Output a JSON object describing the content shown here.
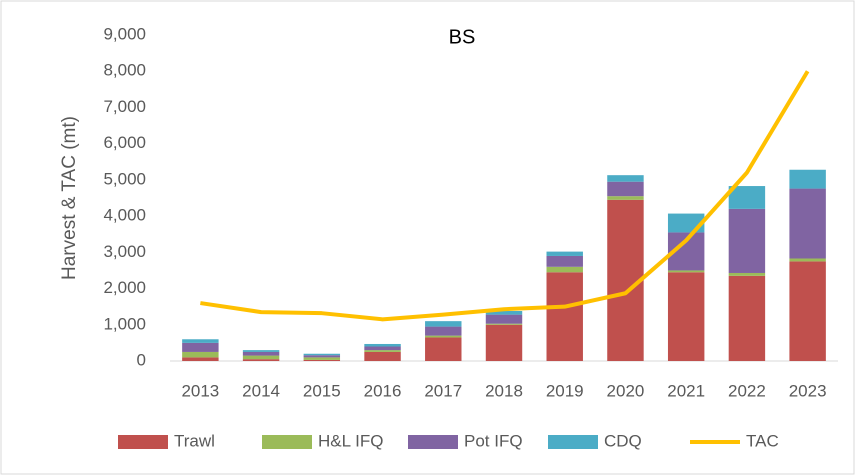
{
  "chart_data": {
    "type": "bar",
    "stacked": true,
    "title": "BS",
    "y_label": "Harvest & TAC (mt)",
    "categories": [
      "2013",
      "2014",
      "2015",
      "2016",
      "2017",
      "2018",
      "2019",
      "2020",
      "2021",
      "2022",
      "2023"
    ],
    "series": [
      {
        "name": "Trawl",
        "color": "#c0504d",
        "values": [
          100,
          50,
          30,
          250,
          650,
          1000,
          2450,
          4450,
          2450,
          2350,
          2750
        ]
      },
      {
        "name": "H&L IFQ",
        "color": "#9bbb59",
        "values": [
          150,
          100,
          70,
          50,
          50,
          30,
          150,
          100,
          50,
          80,
          80
        ]
      },
      {
        "name": "Pot IFQ",
        "color": "#8064a2",
        "values": [
          250,
          100,
          60,
          100,
          250,
          250,
          300,
          400,
          1050,
          1770,
          1930
        ]
      },
      {
        "name": "CDQ",
        "color": "#4bacc6",
        "values": [
          100,
          50,
          40,
          70,
          150,
          100,
          120,
          180,
          520,
          630,
          520
        ]
      },
      {
        "name": "TAC",
        "type": "line",
        "color": "#ffc000",
        "values": [
          1600,
          1350,
          1320,
          1150,
          1280,
          1430,
          1500,
          1870,
          3330,
          5200,
          8000
        ]
      }
    ],
    "ylim": [
      0,
      9000
    ],
    "yticks": [
      0,
      {
        "value": 1000,
        "label": "1,000"
      },
      {
        "value": 2000,
        "label": "2,000"
      },
      {
        "value": 3000,
        "label": "3,000"
      },
      {
        "value": 4000,
        "label": "4,000"
      },
      {
        "value": 5000,
        "label": "5,000"
      },
      {
        "value": 6000,
        "label": "6,000"
      },
      {
        "value": 7000,
        "label": "7,000"
      },
      {
        "value": 8000,
        "label": "8,000"
      },
      {
        "value": 9000,
        "label": "9,000"
      }
    ],
    "grid": false,
    "legend": "bottom"
  }
}
